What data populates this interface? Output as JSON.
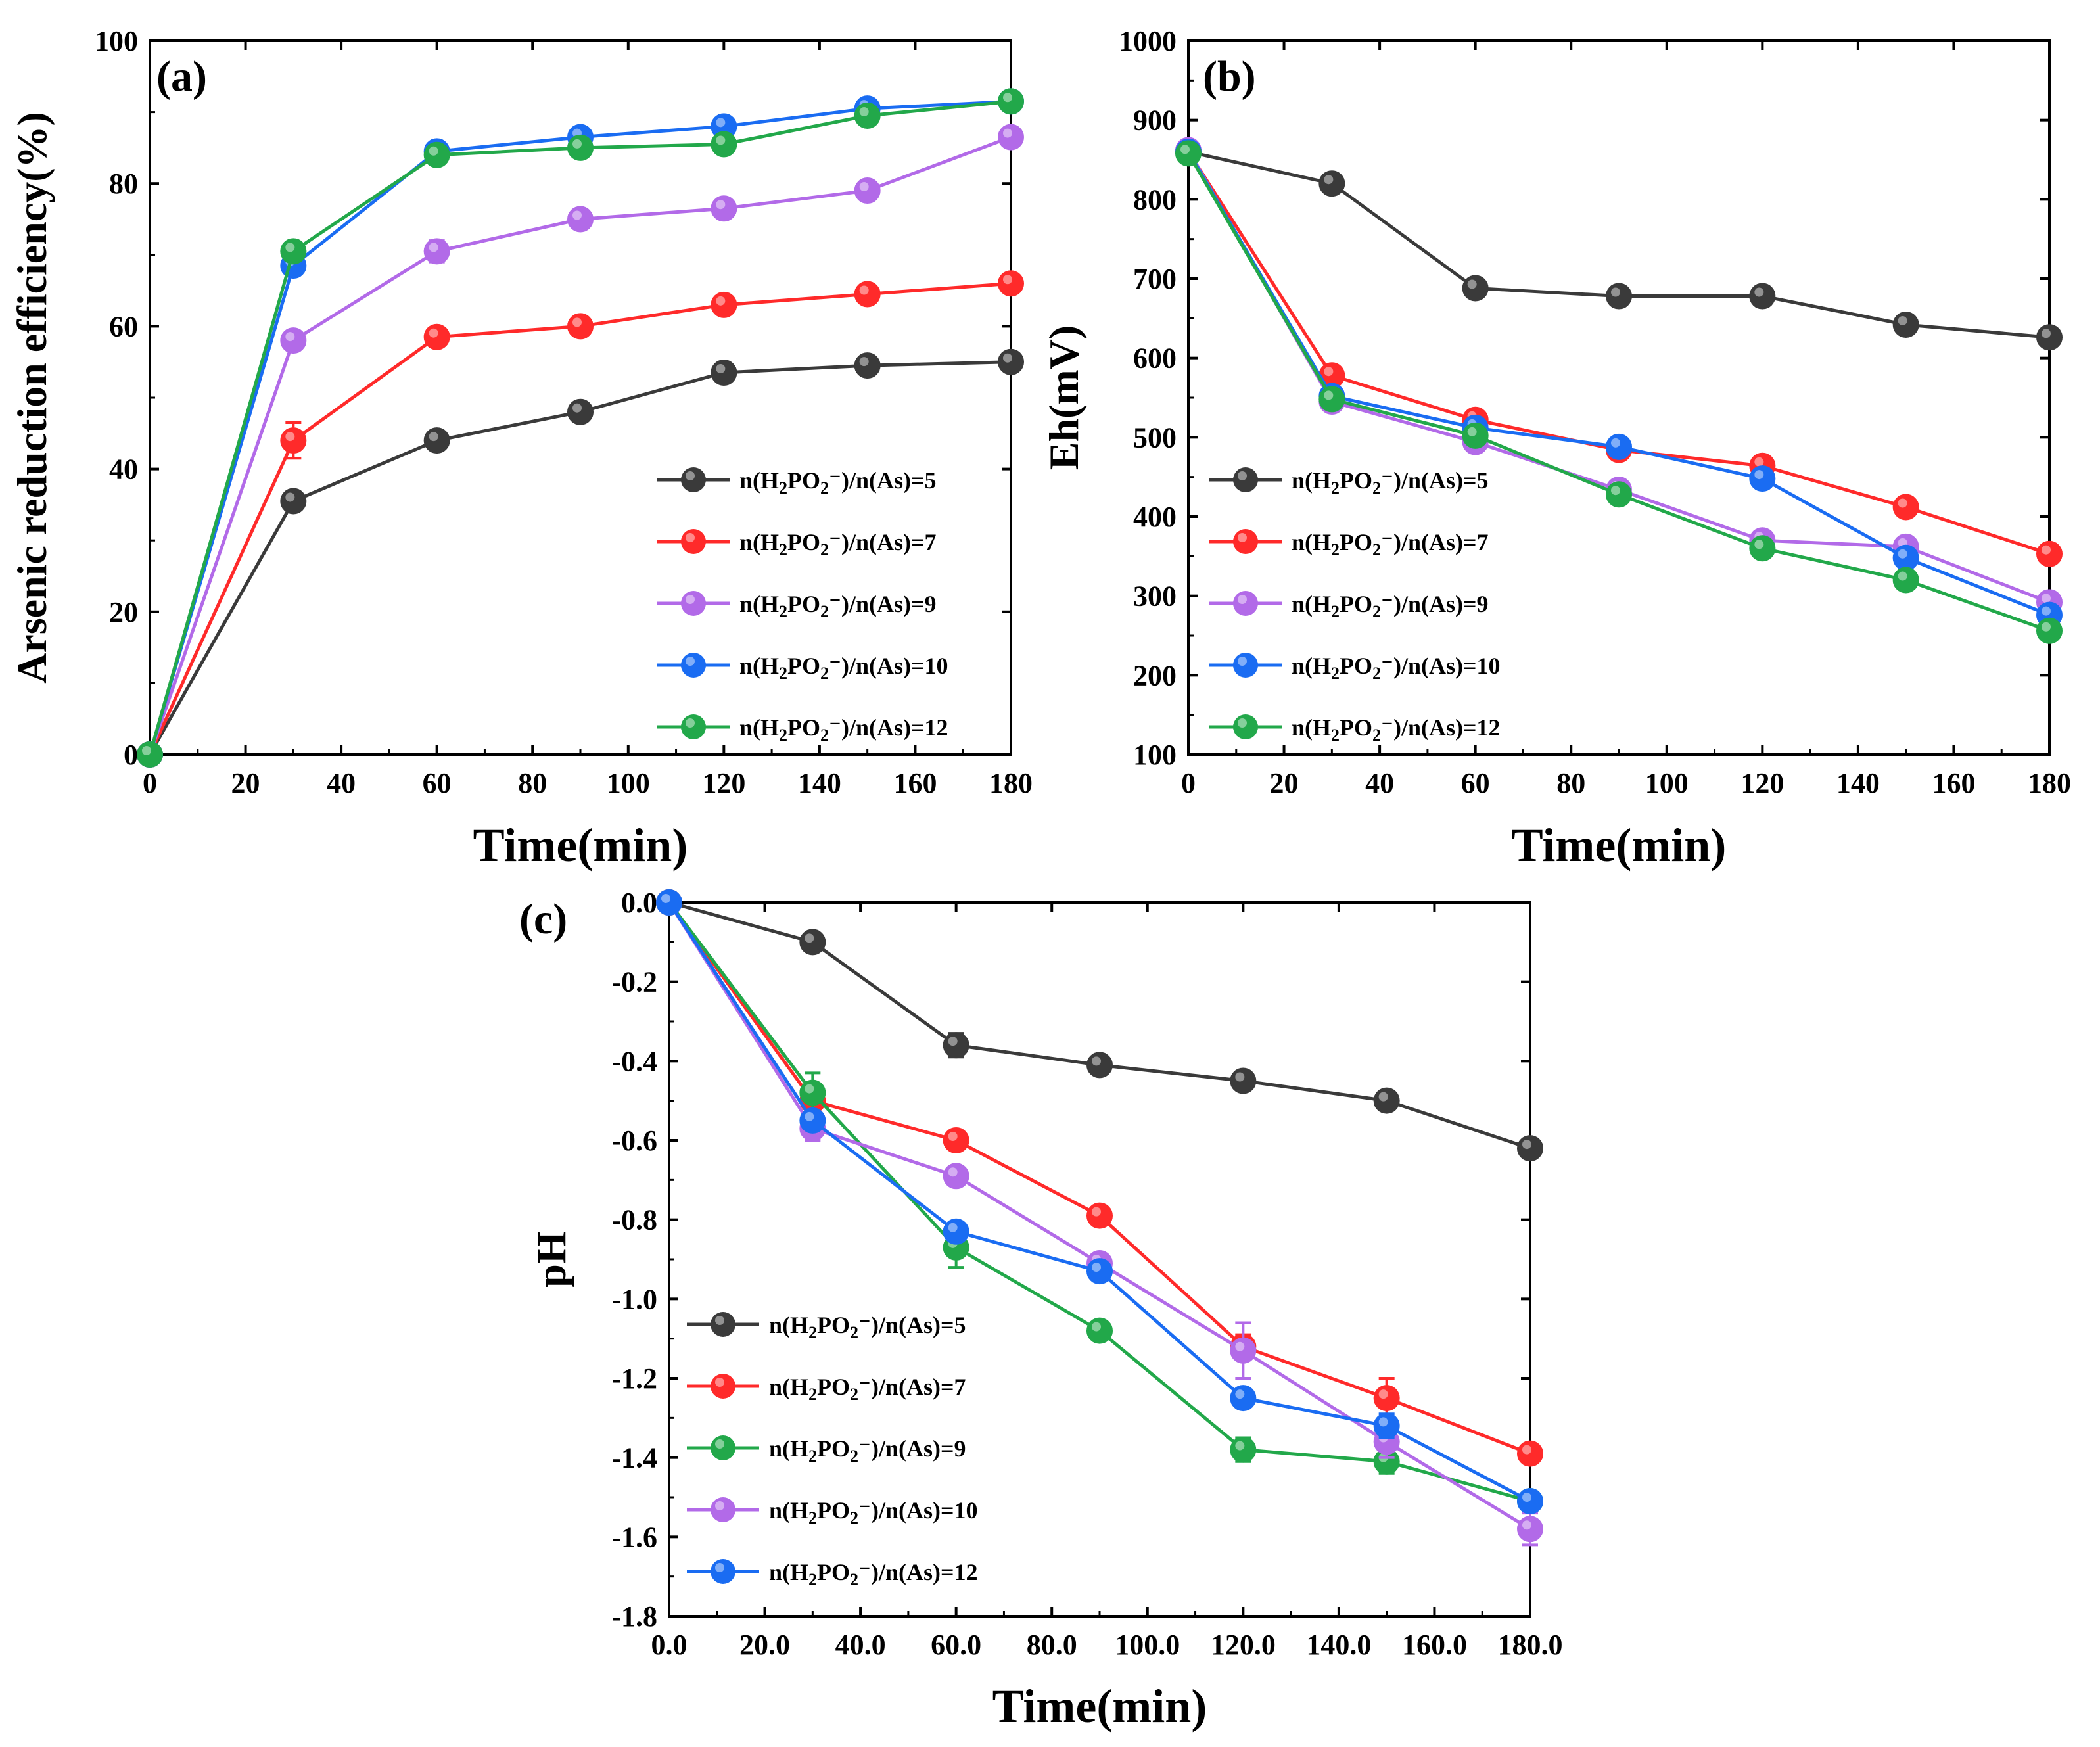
{
  "chart_data": [
    {
      "id": "a",
      "type": "line",
      "panel_label": "(a)",
      "xlabel": "Time(min)",
      "ylabel": "Arsenic reduction efficiency(%)",
      "xlim": [
        0,
        180
      ],
      "ylim": [
        0,
        100
      ],
      "xticks": [
        0,
        20,
        40,
        60,
        80,
        100,
        120,
        140,
        160,
        180
      ],
      "yticks": [
        0,
        20,
        40,
        60,
        80,
        100
      ],
      "tick_decimals": 0,
      "legend_position": "bottom-right",
      "x": [
        0,
        30,
        60,
        90,
        120,
        150,
        180
      ],
      "series": [
        {
          "name": "n(H2PO2⁻)/n(As)=5",
          "color": "#3a3a3a",
          "values": [
            0,
            35.5,
            44,
            48,
            53.5,
            54.5,
            55
          ],
          "errors": [
            0,
            0.8,
            0.8,
            0.8,
            0.8,
            0.6,
            0.6
          ]
        },
        {
          "name": "n(H2PO2⁻)/n(As)=7",
          "color": "#ff2a2a",
          "values": [
            0,
            44,
            58.5,
            60,
            63,
            64.5,
            66
          ],
          "errors": [
            0,
            2.5,
            1.2,
            0.8,
            0.8,
            0.8,
            0.8
          ]
        },
        {
          "name": "n(H2PO2⁻)/n(As)=9",
          "color": "#b26ae8",
          "values": [
            0,
            58,
            70.5,
            75,
            76.5,
            79,
            86.5
          ],
          "errors": [
            0,
            0.8,
            1.5,
            0.8,
            0.8,
            0.8,
            0.8
          ]
        },
        {
          "name": "n(H2PO2⁻)/n(As)=10",
          "color": "#1a6cf2",
          "values": [
            0,
            68.5,
            84.5,
            86.5,
            88,
            90.5,
            91.5
          ],
          "errors": [
            0,
            0.8,
            0.8,
            0.8,
            0.8,
            0.8,
            0.8
          ]
        },
        {
          "name": "n(H2PO2⁻)/n(As)=12",
          "color": "#22a84a",
          "values": [
            0,
            70.5,
            84,
            85,
            85.5,
            89.5,
            91.5
          ],
          "errors": [
            0,
            0.8,
            0.8,
            0.8,
            0.8,
            0.8,
            0.8
          ]
        }
      ]
    },
    {
      "id": "b",
      "type": "line",
      "panel_label": "(b)",
      "xlabel": "Time(min)",
      "ylabel": "Eh(mV)",
      "xlim": [
        0,
        180
      ],
      "ylim": [
        100,
        1000
      ],
      "xticks": [
        0,
        20,
        40,
        60,
        80,
        100,
        120,
        140,
        160,
        180
      ],
      "yticks": [
        100,
        200,
        300,
        400,
        500,
        600,
        700,
        800,
        900,
        1000
      ],
      "tick_decimals": 0,
      "legend_position": "bottom-left",
      "x": [
        0,
        30,
        60,
        90,
        120,
        150,
        180
      ],
      "series": [
        {
          "name": "n(H2PO2⁻)/n(As)=5",
          "color": "#3a3a3a",
          "values": [
            860,
            820,
            688,
            678,
            678,
            642,
            626
          ],
          "errors": [
            0,
            5,
            5,
            5,
            5,
            5,
            5
          ]
        },
        {
          "name": "n(H2PO2⁻)/n(As)=7",
          "color": "#ff2a2a",
          "values": [
            860,
            578,
            522,
            484,
            464,
            412,
            353
          ],
          "errors": [
            0,
            5,
            5,
            5,
            5,
            5,
            5
          ]
        },
        {
          "name": "n(H2PO2⁻)/n(As)=9",
          "color": "#b26ae8",
          "values": [
            862,
            545,
            494,
            434,
            370,
            362,
            292
          ],
          "errors": [
            0,
            5,
            5,
            5,
            5,
            5,
            5
          ]
        },
        {
          "name": "n(H2PO2⁻)/n(As)=10",
          "color": "#1a6cf2",
          "values": [
            860,
            552,
            512,
            488,
            448,
            348,
            276
          ],
          "errors": [
            0,
            5,
            5,
            5,
            5,
            5,
            5
          ]
        },
        {
          "name": "n(H2PO2⁻)/n(As)=12",
          "color": "#22a84a",
          "values": [
            858,
            548,
            502,
            428,
            360,
            320,
            256
          ],
          "errors": [
            0,
            5,
            5,
            5,
            5,
            5,
            5
          ]
        }
      ]
    },
    {
      "id": "c",
      "type": "line",
      "panel_label": "(c)",
      "xlabel": "Time(min)",
      "ylabel": "pH",
      "xlim": [
        0,
        180
      ],
      "ylim": [
        -1.8,
        0
      ],
      "xticks": [
        0,
        20,
        40,
        60,
        80,
        100,
        120,
        140,
        160,
        180
      ],
      "yticks": [
        0,
        -0.2,
        -0.4,
        -0.6,
        -0.8,
        -1.0,
        -1.2,
        -1.4,
        -1.6,
        -1.8
      ],
      "tick_decimals": 1,
      "legend_position": "bottom-left",
      "x": [
        0,
        30,
        60,
        90,
        120,
        150,
        180
      ],
      "series": [
        {
          "name": "n(H2PO2⁻)/n(As)=5",
          "color": "#3a3a3a",
          "values": [
            0,
            -0.1,
            -0.36,
            -0.41,
            -0.45,
            -0.5,
            -0.62
          ],
          "errors": [
            0,
            0.015,
            0.03,
            0.015,
            0.015,
            0.015,
            0.015
          ]
        },
        {
          "name": "n(H2PO2⁻)/n(As)=7",
          "color": "#ff2a2a",
          "values": [
            0,
            -0.5,
            -0.6,
            -0.79,
            -1.12,
            -1.25,
            -1.39
          ],
          "errors": [
            0,
            0.02,
            0.02,
            0.02,
            0.03,
            0.05,
            0.02
          ]
        },
        {
          "name": "n(H2PO2⁻)/n(As)=9",
          "color": "#22a84a",
          "values": [
            0,
            -0.48,
            -0.87,
            -1.08,
            -1.38,
            -1.41,
            -1.51
          ],
          "errors": [
            0,
            0.05,
            0.05,
            0.02,
            0.03,
            0.03,
            0.02
          ]
        },
        {
          "name": "n(H2PO2⁻)/n(As)=10",
          "color": "#b26ae8",
          "values": [
            0,
            -0.57,
            -0.69,
            -0.91,
            -1.13,
            -1.36,
            -1.58
          ],
          "errors": [
            0,
            0.03,
            0.02,
            0.02,
            0.07,
            0.04,
            0.04
          ]
        },
        {
          "name": "n(H2PO2⁻)/n(As)=12",
          "color": "#1a6cf2",
          "values": [
            0,
            -0.55,
            -0.83,
            -0.93,
            -1.25,
            -1.32,
            -1.51
          ],
          "errors": [
            0,
            0.02,
            0.02,
            0.02,
            0.02,
            0.03,
            0.02
          ]
        }
      ]
    }
  ]
}
